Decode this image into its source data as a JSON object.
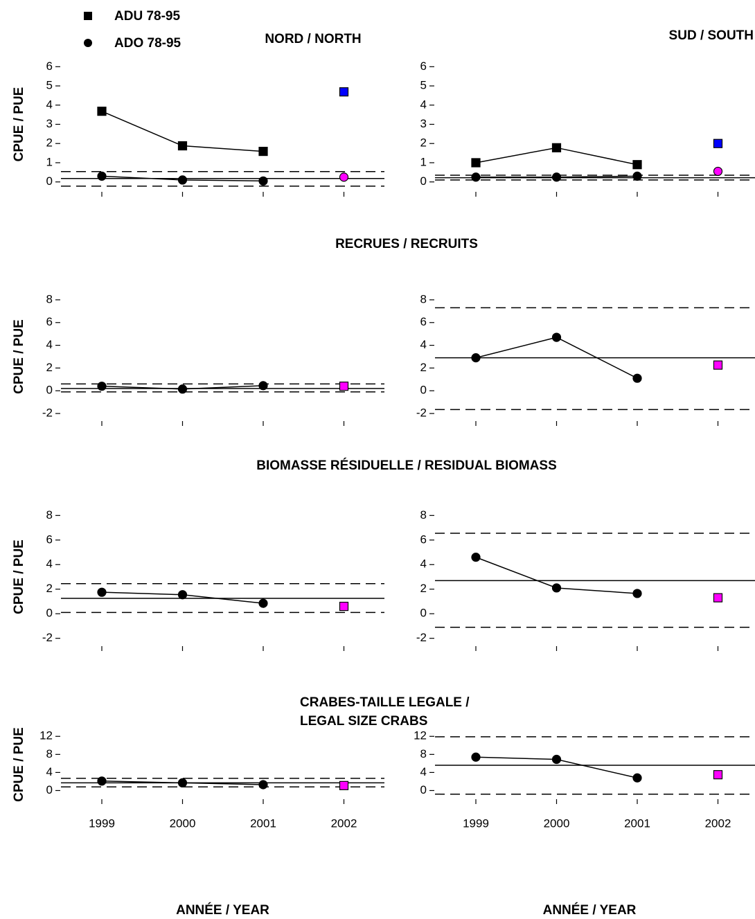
{
  "section_titles": [
    "RECRUES / RECRUITS",
    "BIOMASSE RÉSIDUELLE / RESIDUAL BIOMASS",
    "CRABES-TAILLE LEGALE /",
    "LEGAL SIZE CRABS"
  ],
  "chart_data": [
    {
      "type": "line",
      "title": "NORD / NORTH",
      "ylabel": "CPUE / PUE",
      "categories": [
        null,
        null,
        null,
        null
      ],
      "series": [
        {
          "name": "ADU 78-95",
          "marker": "square",
          "color": "#000000",
          "line": true,
          "values": [
            3.68,
            1.88,
            1.59,
            null
          ]
        },
        {
          "name": "ADO 78-95",
          "marker": "circle",
          "color": "#000000",
          "line": true,
          "values": [
            0.3,
            0.1,
            0.05,
            null
          ]
        },
        {
          "marker": "square",
          "color": "#0000ff",
          "line": false,
          "values": [
            null,
            null,
            null,
            4.69
          ]
        },
        {
          "marker": "circle",
          "color": "#ff00ff",
          "line": false,
          "values": [
            null,
            null,
            null,
            0.25
          ]
        }
      ],
      "hlines": {
        "mean": 0.18,
        "lower": -0.22,
        "upper": 0.54
      },
      "ylim": [
        -0.3,
        6.3
      ],
      "yticks": [
        0,
        1,
        2,
        3,
        4,
        5,
        6
      ]
    },
    {
      "type": "line",
      "title": "SUD / SOUTH",
      "categories": [
        null,
        null,
        null,
        null
      ],
      "series": [
        {
          "marker": "square",
          "color": "#000000",
          "line": true,
          "values": [
            1.0,
            1.78,
            0.9,
            null
          ]
        },
        {
          "marker": "circle",
          "color": "#000000",
          "line": true,
          "values": [
            0.25,
            0.25,
            0.3,
            null
          ]
        },
        {
          "marker": "square",
          "color": "#0000ff",
          "line": false,
          "values": [
            null,
            null,
            null,
            2.0
          ]
        },
        {
          "marker": "circle",
          "color": "#ff00ff",
          "line": false,
          "values": [
            null,
            null,
            null,
            0.55
          ]
        }
      ],
      "hlines": {
        "mean": 0.22,
        "lower": 0.1,
        "upper": 0.35
      },
      "ylim": [
        -0.3,
        6.3
      ],
      "yticks": [
        0,
        1,
        2,
        3,
        4,
        5,
        6
      ]
    },
    {
      "type": "line",
      "ylabel": "CPUE / PUE",
      "categories": [
        null,
        null,
        null,
        null
      ],
      "series": [
        {
          "marker": "circle",
          "color": "#000000",
          "line": true,
          "values": [
            0.4,
            0.15,
            0.45,
            null
          ]
        },
        {
          "marker": "square",
          "color": "#ff00ff",
          "line": false,
          "values": [
            null,
            null,
            null,
            0.4
          ]
        }
      ],
      "hlines": {
        "mean": 0.2,
        "lower": -0.1,
        "upper": 0.6
      },
      "ylim": [
        -2.3,
        8.3
      ],
      "yticks": [
        -2,
        0,
        2,
        4,
        6,
        8
      ]
    },
    {
      "type": "line",
      "categories": [
        null,
        null,
        null,
        null
      ],
      "series": [
        {
          "marker": "circle",
          "color": "#000000",
          "line": true,
          "values": [
            2.9,
            4.7,
            1.1,
            null
          ]
        },
        {
          "marker": "square",
          "color": "#ff00ff",
          "line": false,
          "values": [
            null,
            null,
            null,
            2.26
          ]
        }
      ],
      "hlines": {
        "mean": 2.9,
        "lower": -1.65,
        "upper": 7.3
      },
      "ylim": [
        -2.3,
        8.3
      ],
      "yticks": [
        -2,
        0,
        2,
        4,
        6,
        8
      ]
    },
    {
      "type": "line",
      "ylabel": "CPUE / PUE",
      "categories": [
        null,
        null,
        null,
        null
      ],
      "series": [
        {
          "marker": "circle",
          "color": "#000000",
          "line": true,
          "values": [
            1.75,
            1.55,
            0.85,
            null
          ]
        },
        {
          "marker": "square",
          "color": "#ff00ff",
          "line": false,
          "values": [
            null,
            null,
            null,
            0.6
          ]
        }
      ],
      "hlines": {
        "mean": 1.25,
        "lower": 0.1,
        "upper": 2.45
      },
      "ylim": [
        -2.3,
        8.3
      ],
      "yticks": [
        -2,
        0,
        2,
        4,
        6,
        8
      ]
    },
    {
      "type": "line",
      "categories": [
        null,
        null,
        null,
        null
      ],
      "series": [
        {
          "marker": "circle",
          "color": "#000000",
          "line": true,
          "values": [
            4.6,
            2.1,
            1.65,
            null
          ]
        },
        {
          "marker": "square",
          "color": "#ff00ff",
          "line": false,
          "values": [
            null,
            null,
            null,
            1.3
          ]
        }
      ],
      "hlines": {
        "mean": 2.7,
        "lower": -1.1,
        "upper": 6.55
      },
      "ylim": [
        -2.3,
        8.3
      ],
      "yticks": [
        -2,
        0,
        2,
        4,
        6,
        8
      ]
    },
    {
      "type": "line",
      "ylabel": "CPUE / PUE",
      "xlabel": "ANNÉE / YEAR",
      "categories": [
        "1999",
        "2000",
        "2001",
        "2002"
      ],
      "series": [
        {
          "marker": "circle",
          "color": "#000000",
          "line": true,
          "values": [
            2.1,
            1.7,
            1.3,
            null
          ]
        },
        {
          "marker": "square",
          "color": "#ff00ff",
          "line": false,
          "values": [
            null,
            null,
            null,
            1.1
          ]
        }
      ],
      "hlines": {
        "mean": 1.7,
        "lower": 0.8,
        "upper": 2.7
      },
      "ylim": [
        -1,
        12.5
      ],
      "yticks": [
        0,
        4,
        8,
        12
      ]
    },
    {
      "type": "line",
      "xlabel": "ANNÉE / YEAR",
      "categories": [
        "1999",
        "2000",
        "2001",
        "2002"
      ],
      "series": [
        {
          "marker": "circle",
          "color": "#000000",
          "line": true,
          "values": [
            7.4,
            6.9,
            2.8,
            null
          ]
        },
        {
          "marker": "square",
          "color": "#ff00ff",
          "line": false,
          "values": [
            null,
            null,
            null,
            3.5
          ]
        }
      ],
      "hlines": {
        "mean": 5.6,
        "lower": -0.8,
        "upper": 11.9
      },
      "ylim": [
        -1,
        12.5
      ],
      "yticks": [
        0,
        4,
        8,
        12
      ]
    }
  ]
}
